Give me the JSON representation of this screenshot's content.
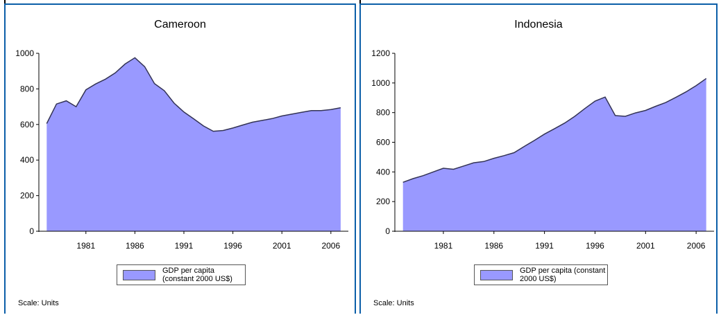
{
  "page": {
    "scale_note": "Scale: Units",
    "colors": {
      "frame": "#0a5ea8",
      "area_fill": "#9999ff",
      "area_stroke": "#333355"
    }
  },
  "chart_data": [
    {
      "type": "area",
      "title": "Cameroon",
      "xlabel": "",
      "ylabel": "",
      "x": [
        1977,
        1978,
        1979,
        1980,
        1981,
        1982,
        1983,
        1984,
        1985,
        1986,
        1987,
        1988,
        1989,
        1990,
        1991,
        1992,
        1993,
        1994,
        1995,
        1996,
        1997,
        1998,
        1999,
        2000,
        2001,
        2002,
        2003,
        2004,
        2005,
        2006,
        2007
      ],
      "series": [
        {
          "name": "GDP per capita (constant 2000 US$)",
          "values": [
            605,
            715,
            733,
            700,
            795,
            828,
            855,
            890,
            940,
            975,
            925,
            830,
            790,
            720,
            670,
            632,
            592,
            562,
            566,
            580,
            597,
            613,
            623,
            633,
            648,
            658,
            668,
            678,
            678,
            684,
            694
          ]
        }
      ],
      "xticks": [
        1981,
        1986,
        1991,
        1996,
        2001,
        2006
      ],
      "yticks": [
        0,
        200,
        400,
        600,
        800,
        1000
      ],
      "xlim": [
        1976.2,
        2007.5
      ],
      "ylim": [
        0,
        1000
      ],
      "grid": false,
      "legend": "bottom-center"
    },
    {
      "type": "area",
      "title": "Indonesia",
      "xlabel": "",
      "ylabel": "",
      "x": [
        1977,
        1978,
        1979,
        1980,
        1981,
        1982,
        1983,
        1984,
        1985,
        1986,
        1987,
        1988,
        1989,
        1990,
        1991,
        1992,
        1993,
        1994,
        1995,
        1996,
        1997,
        1998,
        1999,
        2000,
        2001,
        2002,
        2003,
        2004,
        2005,
        2006,
        2007
      ],
      "series": [
        {
          "name": "GDP per capita (constant 2000 US$)",
          "values": [
            330,
            355,
            375,
            400,
            425,
            418,
            440,
            462,
            470,
            492,
            510,
            530,
            572,
            612,
            655,
            692,
            730,
            775,
            828,
            878,
            905,
            780,
            775,
            798,
            815,
            843,
            868,
            903,
            940,
            982,
            1030
          ]
        }
      ],
      "xticks": [
        1981,
        1986,
        1991,
        1996,
        2001,
        2006
      ],
      "yticks": [
        0,
        200,
        400,
        600,
        800,
        1000,
        1200
      ],
      "xlim": [
        1976.2,
        2007.5
      ],
      "ylim": [
        0,
        1200
      ],
      "grid": false,
      "legend": "bottom-center"
    }
  ]
}
